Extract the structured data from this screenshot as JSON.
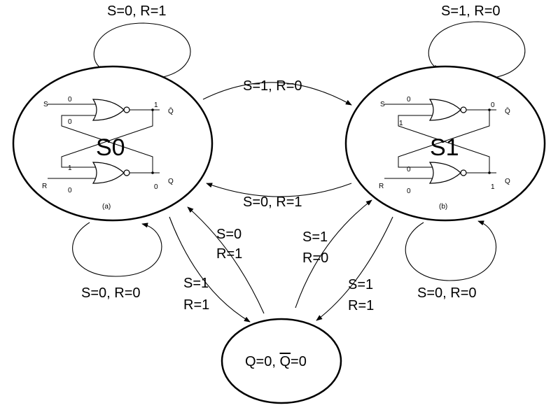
{
  "states": {
    "s0": {
      "name": "S0",
      "sublabel": "(a)",
      "inputs": {
        "s": "S",
        "r": "R"
      },
      "outputs": {
        "qbar": "Q̄",
        "q": "Q"
      },
      "values": {
        "s_in": "0",
        "top_fb": "0",
        "bot_fb": "1",
        "r_in": "0",
        "qbar_out": "1",
        "q_out": "0"
      }
    },
    "s1": {
      "name": "S1",
      "sublabel": "(b)",
      "inputs": {
        "s": "S",
        "r": "R"
      },
      "outputs": {
        "qbar": "Q̄",
        "q": "Q"
      },
      "values": {
        "s_in": "0",
        "top_fb": "1",
        "bot_fb": "0",
        "r_in": "0",
        "qbar_out": "0",
        "q_out": "1"
      }
    },
    "invalid": {
      "label_prefix": "Q=0, ",
      "label_qbar": "Q",
      "label_suffix": "=0"
    }
  },
  "transitions": {
    "s0_self_top": "S=0, R=1",
    "s1_self_top": "S=1, R=0",
    "s0_to_s1": "S=1, R=0",
    "s1_to_s0": "S=0, R=1",
    "s0_self_bottom": "S=0, R=0",
    "s1_self_bottom": "S=0, R=0",
    "invalid_to_s0_line1": "S=0",
    "invalid_to_s0_line2": "R=1",
    "s0_to_invalid_line1": "S=1",
    "s0_to_invalid_line2": "R=1",
    "invalid_to_s1_line1": "S=1",
    "invalid_to_s1_line2": "R=0",
    "s1_to_invalid_line1": "S=1",
    "s1_to_invalid_line2": "R=1"
  }
}
